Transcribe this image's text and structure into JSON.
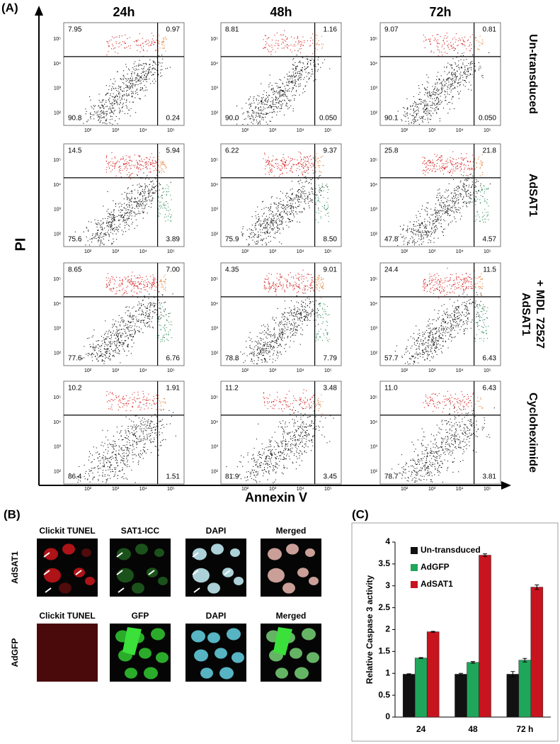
{
  "panels": {
    "a": "(A)",
    "b": "(B)",
    "c": "(C)"
  },
  "flow": {
    "columns": [
      "24h",
      "48h",
      "72h"
    ],
    "x_label": "Annexin V",
    "y_label": "PI",
    "ticks": [
      "10²",
      "10³",
      "10⁴",
      "10⁵"
    ],
    "rows": [
      {
        "label": [
          "Un-transduced"
        ],
        "plots": [
          [
            "7.95",
            "0.97",
            "90.8",
            "0.24"
          ],
          [
            "8.81",
            "1.16",
            "90.0",
            "0.050"
          ],
          [
            "9.07",
            "0.81",
            "90.1",
            "0.050"
          ]
        ]
      },
      {
        "label": [
          "AdSAT1"
        ],
        "plots": [
          [
            "14.5",
            "5.94",
            "75.6",
            "3.89"
          ],
          [
            "6.22",
            "9.37",
            "75.9",
            "8.50"
          ],
          [
            "25.8",
            "21.8",
            "47.8",
            "4.57"
          ]
        ]
      },
      {
        "label": [
          "AdSAT1",
          "+ MDL 72527"
        ],
        "plots": [
          [
            "8.65",
            "7.00",
            "77.6",
            "6.76"
          ],
          [
            "4.35",
            "9.01",
            "78.8",
            "7.79"
          ],
          [
            "24.4",
            "11.5",
            "57.7",
            "6.43"
          ]
        ]
      },
      {
        "label": [
          "Cycloheximide"
        ],
        "plots": [
          [
            "10.2",
            "1.91",
            "86.4",
            "1.51"
          ],
          [
            "11.2",
            "3.48",
            "81.9",
            "3.45"
          ],
          [
            "11.0",
            "6.43",
            "78.7",
            "3.81"
          ]
        ]
      }
    ]
  },
  "micrographs": {
    "rows": [
      {
        "label": "AdSAT1",
        "columns": [
          "Clickit TUNEL",
          "SAT1-ICC",
          "DAPI",
          "Merged"
        ]
      },
      {
        "label": "AdGFP",
        "columns": [
          "Clickit TUNEL",
          "GFP",
          "DAPI",
          "Merged"
        ]
      }
    ]
  },
  "chart_data": {
    "type": "bar",
    "y_label": "Relative Caspase 3 activity",
    "categories": [
      "24",
      "48",
      "72 h"
    ],
    "series": [
      {
        "name": "Un-transduced",
        "color": "#111111",
        "values": [
          0.98,
          0.98,
          0.98
        ],
        "errors": [
          0.01,
          0.02,
          0.06
        ]
      },
      {
        "name": "AdGFP",
        "color": "#1fa65a",
        "values": [
          1.35,
          1.25,
          1.3
        ],
        "errors": [
          0.01,
          0.02,
          0.04
        ]
      },
      {
        "name": "AdSAT1",
        "color": "#c8141e",
        "values": [
          1.95,
          3.7,
          2.97
        ],
        "errors": [
          0.01,
          0.03,
          0.05
        ]
      }
    ],
    "ylim": [
      0,
      4
    ],
    "yticks": [
      0,
      0.5,
      1,
      1.5,
      2,
      2.5,
      3,
      3.5,
      4
    ]
  }
}
